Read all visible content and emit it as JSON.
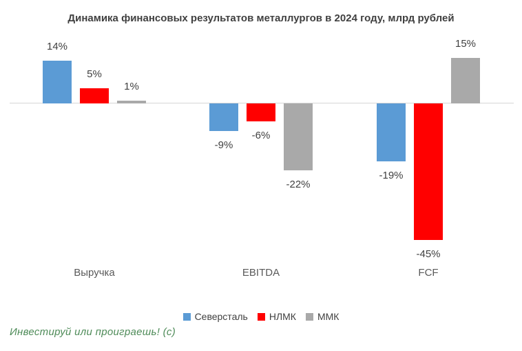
{
  "title": "Динамика финансовых результатов металлургов в 2024 году, млрд рублей",
  "note": {
    "text": "Инвестируй или проиграешь! (с)",
    "color": "#4E8B58"
  },
  "colors": {
    "axis_line": "#D6D6D6",
    "label_text": "#404040",
    "category_text": "#595959"
  },
  "chart_data": {
    "type": "bar",
    "title": "Динамика финансовых результатов металлургов в 2024 году, млрд рублей",
    "categories": [
      "Выручка",
      "EBITDA",
      "FCF"
    ],
    "unit": "%",
    "series": [
      {
        "name": "Северсталь",
        "color": "#5B9BD5",
        "values": [
          14,
          -9,
          -19
        ],
        "labels": [
          "14%",
          "-9%",
          "-19%"
        ]
      },
      {
        "name": "НЛМК",
        "color": "#FF0000",
        "values": [
          5,
          -6,
          -45
        ],
        "labels": [
          "5%",
          "-6%",
          "-45%"
        ]
      },
      {
        "name": "ММК",
        "color": "#A9A9A9",
        "values": [
          1,
          -22,
          15
        ],
        "labels": [
          "1%",
          "-22%",
          "15%"
        ]
      }
    ],
    "value_labels": true,
    "grid": false,
    "legend_position": "bottom",
    "baseline": 0,
    "approx_value_range": [
      -45,
      15
    ]
  }
}
